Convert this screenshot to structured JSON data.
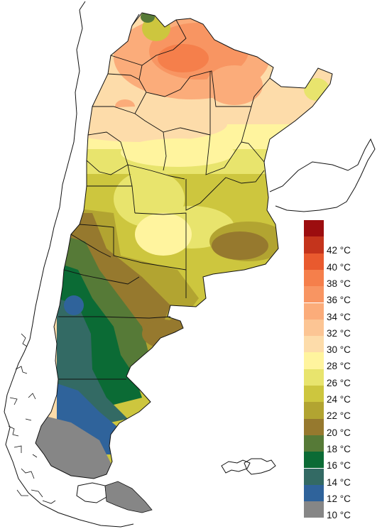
{
  "legend": {
    "bins": [
      {
        "label": "",
        "color": "#9c0d0f"
      },
      {
        "label": "42 °C",
        "color": "#c4341c"
      },
      {
        "label": "40 °C",
        "color": "#e95a2e"
      },
      {
        "label": "38 °C",
        "color": "#f57f4b"
      },
      {
        "label": "36 °C",
        "color": "#f89562"
      },
      {
        "label": "34 °C",
        "color": "#fbac7a"
      },
      {
        "label": "32 °C",
        "color": "#fcc594"
      },
      {
        "label": "30 °C",
        "color": "#fddcaa"
      },
      {
        "label": "28 °C",
        "color": "#fff49e"
      },
      {
        "label": "26 °C",
        "color": "#e8e46d"
      },
      {
        "label": "24 °C",
        "color": "#cdc63e"
      },
      {
        "label": "22 °C",
        "color": "#b2a431"
      },
      {
        "label": "20 °C",
        "color": "#96792e"
      },
      {
        "label": "18 °C",
        "color": "#567a37"
      },
      {
        "label": "16 °C",
        "color": "#0b6b35"
      },
      {
        "label": "14 °C",
        "color": "#336a64"
      },
      {
        "label": "12 °C",
        "color": "#2f639b"
      },
      {
        "label": "10 °C",
        "color": "#868686"
      }
    ]
  }
}
